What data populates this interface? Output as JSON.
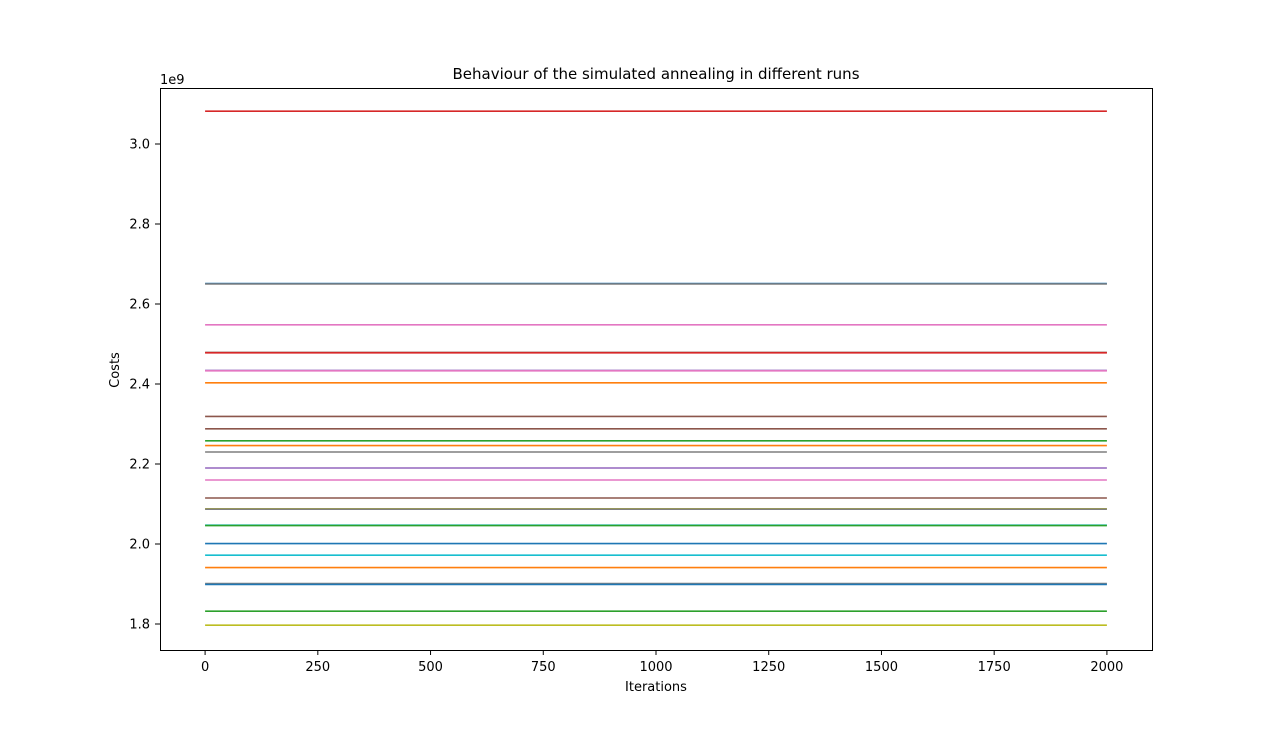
{
  "chart_data": {
    "type": "line",
    "title": "Behaviour of the simulated annealing in different runs",
    "xlabel": "Iterations",
    "ylabel": "Costs",
    "y_offset_label": "1e9",
    "xlim": [
      -100,
      2100
    ],
    "ylim": [
      1.735,
      3.14
    ],
    "y_scale_factor": 1000000000,
    "x_ticks": [
      0,
      250,
      500,
      750,
      1000,
      1250,
      1500,
      1750,
      2000
    ],
    "x_tick_labels": [
      "0",
      "250",
      "500",
      "750",
      "1000",
      "1250",
      "1500",
      "1750",
      "2000"
    ],
    "y_ticks": [
      1.8,
      2.0,
      2.2,
      2.4,
      2.6,
      2.8,
      3.0
    ],
    "y_tick_labels": [
      "1.8",
      "2.0",
      "2.2",
      "2.4",
      "2.6",
      "2.8",
      "3.0"
    ],
    "grid": false,
    "legend": "none",
    "x_range": [
      0,
      2000
    ],
    "series": [
      {
        "y": 3.082,
        "color": "#d62728"
      },
      {
        "y": 2.651,
        "color": "#1f77b4"
      },
      {
        "y": 2.65,
        "color": "#7f7f7f"
      },
      {
        "y": 2.548,
        "color": "#e377c2"
      },
      {
        "y": 2.479,
        "color": "#8c564b"
      },
      {
        "y": 2.478,
        "color": "#d62728"
      },
      {
        "y": 2.434,
        "color": "#9467bd"
      },
      {
        "y": 2.433,
        "color": "#e377c2"
      },
      {
        "y": 2.403,
        "color": "#ff7f0e"
      },
      {
        "y": 2.319,
        "color": "#8c564b"
      },
      {
        "y": 2.288,
        "color": "#8c564b"
      },
      {
        "y": 2.258,
        "color": "#2ca02c"
      },
      {
        "y": 2.246,
        "color": "#ff7f0e"
      },
      {
        "y": 2.23,
        "color": "#7f7f7f"
      },
      {
        "y": 2.19,
        "color": "#9467bd"
      },
      {
        "y": 2.16,
        "color": "#e377c2"
      },
      {
        "y": 2.115,
        "color": "#8c564b"
      },
      {
        "y": 2.088,
        "color": "#bcbd22"
      },
      {
        "y": 2.087,
        "color": "#7f7f7f"
      },
      {
        "y": 2.047,
        "color": "#17becf"
      },
      {
        "y": 2.046,
        "color": "#2ca02c"
      },
      {
        "y": 2.001,
        "color": "#1f77b4"
      },
      {
        "y": 1.972,
        "color": "#17becf"
      },
      {
        "y": 1.941,
        "color": "#ff7f0e"
      },
      {
        "y": 1.901,
        "color": "#7f7f7f"
      },
      {
        "y": 1.899,
        "color": "#1f77b4"
      },
      {
        "y": 1.832,
        "color": "#2ca02c"
      },
      {
        "y": 1.797,
        "color": "#bcbd22"
      }
    ]
  }
}
